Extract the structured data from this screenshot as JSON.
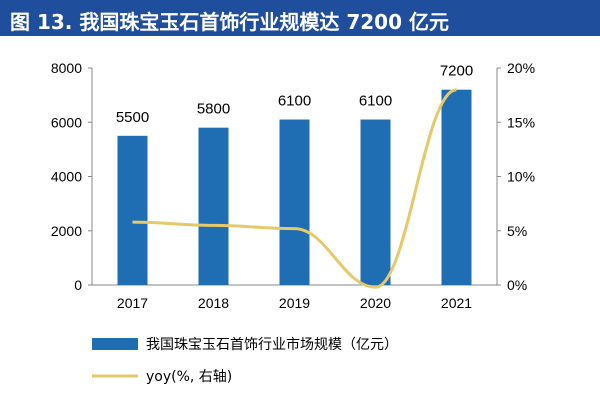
{
  "title": "图 13. 我国珠宝玉石首饰行业规模达 7200 亿元",
  "colors": {
    "title_bg": "#1f4e9d",
    "bar": "#1f6db2",
    "line": "#e6c96a"
  },
  "chart_data": {
    "type": "bar",
    "categories": [
      "2017",
      "2018",
      "2019",
      "2020",
      "2021"
    ],
    "series": [
      {
        "name": "我国珠宝玉石首饰行业市场规模（亿元）",
        "type": "bar",
        "axis": "left",
        "values": [
          5500,
          5800,
          6100,
          6100,
          7200
        ]
      },
      {
        "name": "yoy(%, 右轴)",
        "type": "line",
        "axis": "right",
        "values": [
          5.8,
          5.5,
          5.2,
          -0.2,
          18.0
        ]
      }
    ],
    "y_left": {
      "min": 0,
      "max": 8000,
      "ticks": [
        "0",
        "2000",
        "4000",
        "6000",
        "8000"
      ]
    },
    "y_right": {
      "min": 0,
      "max": 20,
      "ticks": [
        "0%",
        "5%",
        "10%",
        "15%",
        "20%"
      ]
    },
    "data_labels": [
      "5500",
      "5800",
      "6100",
      "6100",
      "7200"
    ],
    "grid": false,
    "legend_position": "bottom"
  }
}
